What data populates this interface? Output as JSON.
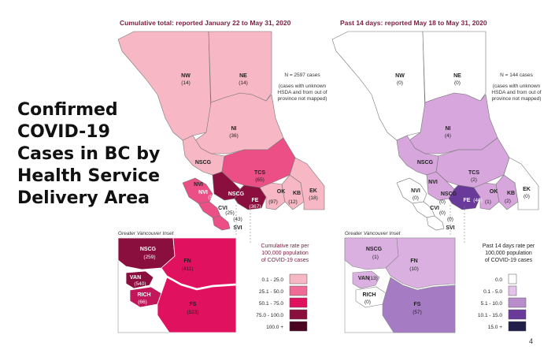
{
  "slide_title_lines": [
    "Confirmed",
    "COVID-19",
    "Cases in BC by",
    "Health Service",
    "Delivery Area"
  ],
  "page_number": "4",
  "maps": {
    "left": {
      "title": "Cumulative total: reported January 22 to May 31, 2020",
      "n_text": "N = 2597 cases",
      "note_lines": [
        "(cases with unknown",
        "HSDA and from out of",
        "province not mapped)"
      ],
      "inset_title": "Greater Vancouver Inset",
      "regions": {
        "NW": {
          "label": "NW",
          "value": "(14)",
          "color": "#f7b7c4"
        },
        "NE": {
          "label": "NE",
          "value": "(14)",
          "color": "#f7b7c4"
        },
        "NI": {
          "label": "NI",
          "value": "(36)",
          "color": "#f7b7c4"
        },
        "NSCG": {
          "label": "NSCG",
          "color": "#f7b7c4"
        },
        "TCS": {
          "label": "TCS",
          "value": "(65)",
          "color": "#ec4f86"
        },
        "NVI": {
          "label": "NVI",
          "value": "(59)",
          "color": "#ec4f86"
        },
        "NSCG_S": {
          "label": "NSCG",
          "color": "#8a0f3e"
        },
        "FE": {
          "label": "FE",
          "value": "(367)",
          "color": "#8a0f3e"
        },
        "OK": {
          "label": "OK",
          "value": "(97)",
          "color": "#f7b7c4"
        },
        "KB": {
          "label": "KB",
          "value": "(12)",
          "color": "#f7b7c4"
        },
        "EK": {
          "label": "EK",
          "value": "(18)",
          "color": "#f7b7c4"
        },
        "CVI": {
          "label": "CVI",
          "value": "(25)",
          "color": "#ec4f86"
        },
        "SVI": {
          "label": "SVI",
          "value": "(43)",
          "color": "#ec4f86"
        }
      },
      "inset_regions": {
        "NSCG": {
          "label": "NSCG",
          "value": "(259)",
          "color": "#8a0f3e"
        },
        "FN": {
          "label": "FN",
          "value": "(411)",
          "color": "#e0115f"
        },
        "VAN": {
          "label": "VAN",
          "value": "(540)",
          "color": "#8a0f3e"
        },
        "RICH": {
          "label": "RICH",
          "value": "(66)",
          "color": "#c2185b"
        },
        "FS": {
          "label": "FS",
          "value": "(523)",
          "color": "#e0115f"
        }
      },
      "legend": {
        "title_lines": [
          "Cumulative rate per",
          "100,000 population",
          "of COVID-19 cases"
        ],
        "items": [
          {
            "label": "0.1 - 25.0",
            "color": "#f7b7c4"
          },
          {
            "label": "25.1 - 50.0",
            "color": "#ef6b96"
          },
          {
            "label": "50.1 - 75.0",
            "color": "#e0115f"
          },
          {
            "label": "75.0 - 100.0",
            "color": "#8a0f3e"
          },
          {
            "label": "100.0 +",
            "color": "#4a0422"
          }
        ]
      }
    },
    "right": {
      "title": "Past 14 days: reported May 18 to May 31, 2020",
      "n_text": "N = 144 cases",
      "note_lines": [
        "(cases with unknown",
        "HSDA and from out of",
        "province not mapped)"
      ],
      "inset_title": "Greater Vancouver Inset",
      "regions": {
        "NW": {
          "label": "NW",
          "value": "(0)",
          "color": "#ffffff"
        },
        "NE": {
          "label": "NE",
          "value": "(0)",
          "color": "#ffffff"
        },
        "NI": {
          "label": "NI",
          "value": "(4)",
          "color": "#d6a6dd"
        },
        "NSCG": {
          "label": "NSCG",
          "color": "#d6a6dd"
        },
        "TCS": {
          "label": "TCS",
          "value": "(2)",
          "color": "#d6a6dd"
        },
        "NVI": {
          "label": "NVI",
          "value": "(0)",
          "color": "#ffffff"
        },
        "NSCG_S": {
          "label": "NSCG",
          "value": "(0)",
          "color": "#d6a6dd"
        },
        "FE": {
          "label": "FE",
          "value": "(46)",
          "color": "#6a3a9a"
        },
        "OK": {
          "label": "OK",
          "value": "(1)",
          "color": "#d6a6dd"
        },
        "KB": {
          "label": "KB",
          "value": "(2)",
          "color": "#d6a6dd"
        },
        "EK": {
          "label": "EK",
          "value": "(0)",
          "color": "#ffffff"
        },
        "CVI": {
          "label": "CVI",
          "value": "(0)",
          "color": "#ffffff"
        },
        "SVI": {
          "label": "SVI",
          "value": "(0)",
          "color": "#ffffff"
        }
      },
      "inset_regions": {
        "NSCG": {
          "label": "NSCG",
          "value": "(1)",
          "color": "#dab0e0"
        },
        "FN": {
          "label": "FN",
          "value": "(10)",
          "color": "#dab0e0"
        },
        "VAN": {
          "label": "VAN",
          "value": "(13)",
          "color": "#dab0e0"
        },
        "RICH": {
          "label": "RICH",
          "value": "(0)",
          "color": "#ffffff"
        },
        "FS": {
          "label": "FS",
          "value": "(57)",
          "color": "#a57cc4"
        }
      },
      "legend": {
        "title_lines": [
          "Past 14 days rate per",
          "100,000 population",
          "of COVID-19 cases"
        ],
        "items": [
          {
            "label": "0.0",
            "color": "#ffffff"
          },
          {
            "label": "0.1 - 5.0",
            "color": "#e3c3ea"
          },
          {
            "label": "5.1 - 10.0",
            "color": "#b98ccc"
          },
          {
            "label": "10.1 - 15.0",
            "color": "#6a3a9a"
          },
          {
            "label": "15.0 +",
            "color": "#1f1f4a"
          }
        ]
      }
    }
  }
}
